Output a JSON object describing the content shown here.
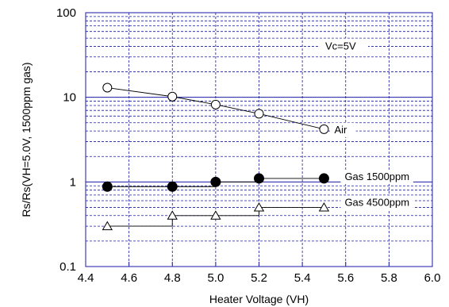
{
  "chart_data": {
    "type": "line",
    "xlabel": "Heater Voltage (VH)",
    "ylabel": "Rs/Rs(VH=5.0V, 1500ppm gas)",
    "xlim": [
      4.4,
      6.0
    ],
    "ylim": [
      0.1,
      100
    ],
    "yscale": "log",
    "grid": true,
    "x_ticks": [
      "4.4",
      "4.6",
      "4.8",
      "5.0",
      "5.2",
      "5.4",
      "5.6",
      "5.8",
      "6.0"
    ],
    "y_ticks": [
      "0.1",
      "1",
      "10",
      "100"
    ],
    "annotation": "Vc=5V",
    "series": [
      {
        "name": "Air",
        "marker": "open-circle",
        "x": [
          4.5,
          4.8,
          5.0,
          5.2,
          5.5
        ],
        "y": [
          13,
          10.2,
          8.2,
          6.4,
          4.2
        ]
      },
      {
        "name": "Gas 1500ppm",
        "marker": "filled-circle",
        "x": [
          4.5,
          4.8,
          5.0,
          5.2,
          5.5
        ],
        "y": [
          0.88,
          0.88,
          1.0,
          1.1,
          1.1
        ]
      },
      {
        "name": "Gas 4500ppm",
        "marker": "open-triangle",
        "x": [
          4.5,
          4.8,
          5.0,
          5.2,
          5.5
        ],
        "y": [
          0.3,
          0.4,
          0.4,
          0.5,
          0.5
        ]
      }
    ],
    "colors": {
      "frame": "#1a1aa6",
      "grid": "#1a1aa6",
      "series": "#000000"
    }
  }
}
